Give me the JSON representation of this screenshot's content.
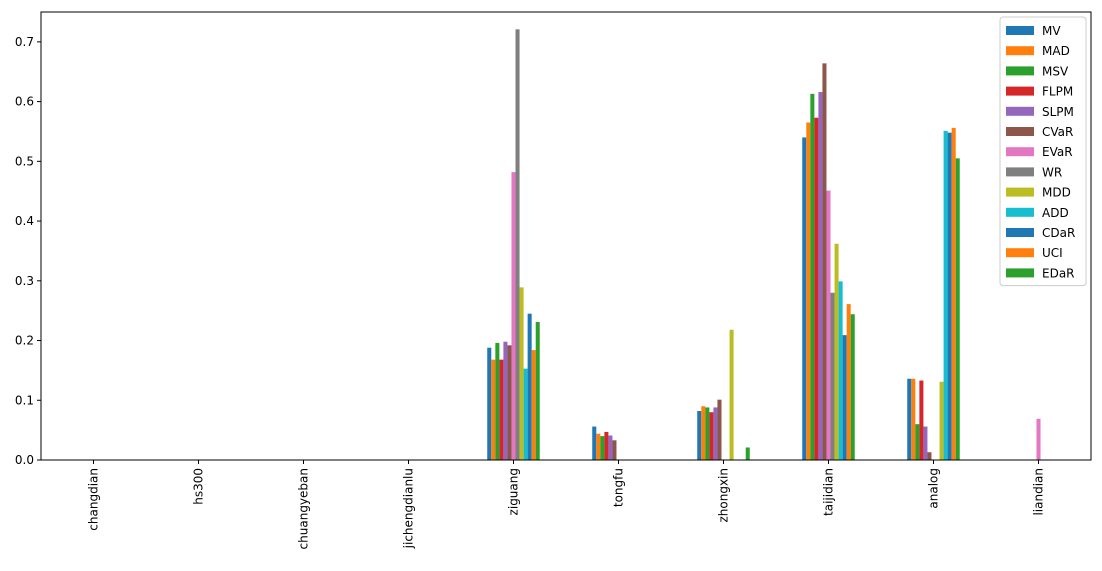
{
  "chart_data": {
    "type": "bar",
    "title": "",
    "xlabel": "",
    "ylabel": "",
    "ylim": [
      0,
      0.75
    ],
    "yticks": [
      "0.0",
      "0.1",
      "0.2",
      "0.3",
      "0.4",
      "0.5",
      "0.6",
      "0.7"
    ],
    "ytick_values": [
      0,
      0.1,
      0.2,
      0.3,
      0.4,
      0.5,
      0.6,
      0.7
    ],
    "grid": false,
    "legend_position": "top-right",
    "categories": [
      "changdian",
      "hs300",
      "chuangyeban",
      "jichengdianlu",
      "ziguang",
      "tongfu",
      "zhongxin",
      "taijidian",
      "analog",
      "liandian"
    ],
    "series": [
      {
        "name": "MV",
        "color": "#1f77b4",
        "values": [
          0,
          0,
          0,
          0,
          0.188,
          0.056,
          0.082,
          0.54,
          0.136,
          0
        ]
      },
      {
        "name": "MAD",
        "color": "#ff7f0e",
        "values": [
          0,
          0,
          0,
          0,
          0.168,
          0.044,
          0.09,
          0.565,
          0.136,
          0
        ]
      },
      {
        "name": "MSV",
        "color": "#2ca02c",
        "values": [
          0,
          0,
          0,
          0,
          0.196,
          0.04,
          0.088,
          0.613,
          0.06,
          0
        ]
      },
      {
        "name": "FLPM",
        "color": "#d62728",
        "values": [
          0,
          0,
          0,
          0,
          0.168,
          0.047,
          0.08,
          0.573,
          0.133,
          0
        ]
      },
      {
        "name": "SLPM",
        "color": "#9467bd",
        "values": [
          0,
          0,
          0,
          0,
          0.198,
          0.041,
          0.088,
          0.616,
          0.056,
          0
        ]
      },
      {
        "name": "CVaR",
        "color": "#8c564b",
        "values": [
          0,
          0,
          0,
          0,
          0.192,
          0.033,
          0.101,
          0.664,
          0.013,
          0
        ]
      },
      {
        "name": "EVaR",
        "color": "#e377c2",
        "values": [
          0,
          0,
          0,
          0,
          0.482,
          0,
          0,
          0.451,
          0,
          0.069
        ]
      },
      {
        "name": "WR",
        "color": "#7f7f7f",
        "values": [
          0,
          0,
          0,
          0,
          0.721,
          0,
          0,
          0.28,
          0,
          0
        ]
      },
      {
        "name": "MDD",
        "color": "#bcbd22",
        "values": [
          0,
          0,
          0,
          0,
          0.289,
          0,
          0.218,
          0.362,
          0.131,
          0
        ]
      },
      {
        "name": "ADD",
        "color": "#17becf",
        "values": [
          0,
          0,
          0,
          0,
          0.153,
          0,
          0,
          0.299,
          0.551,
          0
        ]
      },
      {
        "name": "CDaR",
        "color": "#1f77b4",
        "values": [
          0,
          0,
          0,
          0,
          0.245,
          0,
          0,
          0.209,
          0.548,
          0
        ]
      },
      {
        "name": "UCI",
        "color": "#ff7f0e",
        "values": [
          0,
          0,
          0,
          0,
          0.184,
          0,
          0,
          0.261,
          0.556,
          0
        ]
      },
      {
        "name": "EDaR",
        "color": "#2ca02c",
        "values": [
          0,
          0,
          0,
          0,
          0.231,
          0,
          0.021,
          0.244,
          0.505,
          0
        ]
      }
    ]
  }
}
